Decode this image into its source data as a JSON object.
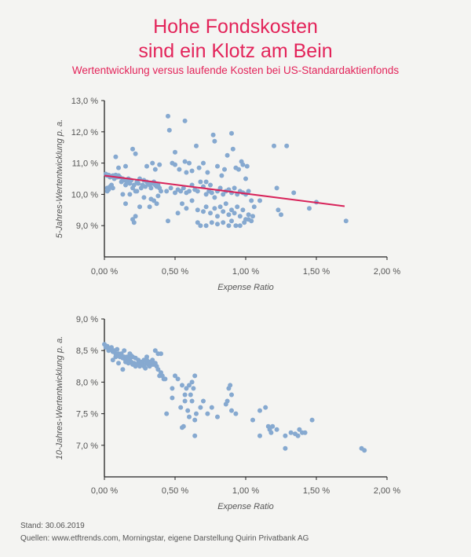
{
  "title_line1": "Hohe Fondskosten",
  "title_line2": "sind ein Klotz am Bein",
  "subtitle": "Wertentwicklung versus laufende Kosten bei US-Standardaktienfonds",
  "footer_stand": "Stand: 30.06.2019",
  "footer_sources": "Quellen: www.etftrends.com, Morningstar, eigene Darstellung Quirin Privatbank AG",
  "colors": {
    "point": "#86a9d0",
    "trend": "#d8235a",
    "title": "#e3245a",
    "axis": "#222222"
  },
  "chart_data": [
    {
      "type": "scatter",
      "xlabel": "Expense Ratio",
      "ylabel": "5-Jahres-Wertentwicklung p. a.",
      "xlim": [
        0,
        2
      ],
      "ylim": [
        8,
        13
      ],
      "xticks": [
        0,
        0.5,
        1,
        1.5,
        2
      ],
      "xtick_labels": [
        "0,00 %",
        "0,50 %",
        "1,00 %",
        "1,50 %",
        "2,00 %"
      ],
      "yticks": [
        9,
        10,
        11,
        12,
        13
      ],
      "ytick_labels": [
        "9,0 %",
        "10,0 %",
        "11,0 %",
        "12,0 %",
        "13,0 %"
      ],
      "trendline": {
        "x": [
          0,
          1.7
        ],
        "y": [
          10.6,
          9.62
        ]
      },
      "points": [
        [
          0.01,
          10.65
        ],
        [
          0.02,
          10.6
        ],
        [
          0.03,
          10.62
        ],
        [
          0.04,
          10.55
        ],
        [
          0.05,
          10.58
        ],
        [
          0.06,
          10.6
        ],
        [
          0.07,
          10.5
        ],
        [
          0.08,
          10.62
        ],
        [
          0.09,
          10.55
        ],
        [
          0.1,
          10.6
        ],
        [
          0.02,
          10.2
        ],
        [
          0.03,
          10.15
        ],
        [
          0.04,
          10.25
        ],
        [
          0.05,
          10.3
        ],
        [
          0.02,
          10.1
        ],
        [
          0.06,
          10.2
        ],
        [
          0.11,
          10.55
        ],
        [
          0.12,
          10.4
        ],
        [
          0.13,
          10.5
        ],
        [
          0.14,
          10.45
        ],
        [
          0.15,
          10.3
        ],
        [
          0.16,
          10.4
        ],
        [
          0.17,
          10.5
        ],
        [
          0.18,
          10.35
        ],
        [
          0.19,
          10.45
        ],
        [
          0.2,
          10.2
        ],
        [
          0.21,
          10.3
        ],
        [
          0.22,
          10.1
        ],
        [
          0.23,
          10.4
        ],
        [
          0.24,
          10.35
        ],
        [
          0.25,
          10.5
        ],
        [
          0.26,
          10.2
        ],
        [
          0.27,
          10.3
        ],
        [
          0.28,
          10.45
        ],
        [
          0.29,
          10.25
        ],
        [
          0.3,
          10.4
        ],
        [
          0.31,
          10.35
        ],
        [
          0.32,
          10.3
        ],
        [
          0.33,
          10.2
        ],
        [
          0.34,
          10.35
        ],
        [
          0.35,
          10.4
        ],
        [
          0.36,
          10.3
        ],
        [
          0.37,
          10.25
        ],
        [
          0.38,
          10.3
        ],
        [
          0.39,
          10.2
        ],
        [
          0.4,
          10.1
        ],
        [
          0.13,
          10.0
        ],
        [
          0.18,
          10.0
        ],
        [
          0.23,
          10.1
        ],
        [
          0.28,
          9.9
        ],
        [
          0.33,
          9.85
        ],
        [
          0.38,
          9.95
        ],
        [
          0.15,
          9.7
        ],
        [
          0.25,
          9.6
        ],
        [
          0.35,
          9.8
        ],
        [
          0.37,
          9.7
        ],
        [
          0.2,
          9.2
        ],
        [
          0.22,
          9.3
        ],
        [
          0.21,
          9.1
        ],
        [
          0.32,
          9.6
        ],
        [
          0.08,
          11.2
        ],
        [
          0.15,
          10.9
        ],
        [
          0.2,
          11.45
        ],
        [
          0.22,
          11.3
        ],
        [
          0.3,
          10.9
        ],
        [
          0.34,
          11.0
        ],
        [
          0.36,
          10.8
        ],
        [
          0.39,
          10.95
        ],
        [
          0.1,
          10.85
        ],
        [
          0.45,
          12.5
        ],
        [
          0.46,
          12.05
        ],
        [
          0.57,
          12.35
        ],
        [
          0.48,
          11.0
        ],
        [
          0.5,
          11.35
        ],
        [
          0.5,
          10.95
        ],
        [
          0.53,
          10.8
        ],
        [
          0.57,
          11.05
        ],
        [
          0.58,
          10.7
        ],
        [
          0.6,
          11.0
        ],
        [
          0.62,
          10.75
        ],
        [
          0.65,
          11.55
        ],
        [
          0.67,
          10.85
        ],
        [
          0.7,
          11.0
        ],
        [
          0.72,
          10.4
        ],
        [
          0.73,
          10.7
        ],
        [
          0.75,
          10.3
        ],
        [
          0.77,
          11.9
        ],
        [
          0.78,
          11.7
        ],
        [
          0.8,
          10.9
        ],
        [
          0.83,
          10.6
        ],
        [
          0.85,
          10.8
        ],
        [
          0.87,
          11.25
        ],
        [
          0.9,
          11.95
        ],
        [
          0.91,
          11.45
        ],
        [
          0.93,
          10.85
        ],
        [
          0.95,
          10.8
        ],
        [
          0.97,
          11.05
        ],
        [
          0.98,
          10.95
        ],
        [
          1.0,
          10.5
        ],
        [
          1.01,
          10.9
        ],
        [
          0.44,
          10.1
        ],
        [
          0.47,
          10.2
        ],
        [
          0.5,
          10.05
        ],
        [
          0.52,
          10.15
        ],
        [
          0.54,
          10.1
        ],
        [
          0.56,
          10.2
        ],
        [
          0.58,
          10.05
        ],
        [
          0.6,
          10.1
        ],
        [
          0.62,
          10.3
        ],
        [
          0.64,
          10.15
        ],
        [
          0.66,
          10.1
        ],
        [
          0.68,
          10.4
        ],
        [
          0.7,
          10.25
        ],
        [
          0.72,
          10.0
        ],
        [
          0.74,
          10.1
        ],
        [
          0.76,
          10.05
        ],
        [
          0.78,
          9.9
        ],
        [
          0.8,
          10.1
        ],
        [
          0.82,
          10.2
        ],
        [
          0.84,
          10.0
        ],
        [
          0.86,
          10.1
        ],
        [
          0.88,
          10.15
        ],
        [
          0.9,
          10.05
        ],
        [
          0.92,
          10.2
        ],
        [
          0.94,
          10.0
        ],
        [
          0.96,
          10.1
        ],
        [
          0.98,
          10.05
        ],
        [
          1.0,
          10.0
        ],
        [
          1.02,
          10.1
        ],
        [
          1.04,
          9.8
        ],
        [
          0.55,
          9.7
        ],
        [
          0.58,
          9.55
        ],
        [
          0.62,
          9.8
        ],
        [
          0.66,
          9.5
        ],
        [
          0.7,
          9.45
        ],
        [
          0.72,
          9.6
        ],
        [
          0.75,
          9.4
        ],
        [
          0.78,
          9.55
        ],
        [
          0.8,
          9.3
        ],
        [
          0.82,
          9.6
        ],
        [
          0.84,
          9.45
        ],
        [
          0.86,
          9.7
        ],
        [
          0.88,
          9.35
        ],
        [
          0.9,
          9.5
        ],
        [
          0.92,
          9.4
        ],
        [
          0.94,
          9.6
        ],
        [
          0.96,
          9.3
        ],
        [
          0.98,
          9.5
        ],
        [
          1.0,
          9.2
        ],
        [
          1.02,
          9.35
        ],
        [
          0.45,
          9.15
        ],
        [
          0.52,
          9.4
        ],
        [
          0.66,
          9.1
        ],
        [
          0.68,
          9.0
        ],
        [
          0.72,
          9.0
        ],
        [
          0.76,
          9.1
        ],
        [
          0.8,
          9.05
        ],
        [
          0.84,
          9.1
        ],
        [
          0.88,
          9.0
        ],
        [
          0.9,
          9.15
        ],
        [
          0.93,
          9.0
        ],
        [
          0.96,
          9.0
        ],
        [
          0.99,
          9.1
        ],
        [
          1.02,
          9.2
        ],
        [
          1.04,
          9.15
        ],
        [
          1.06,
          9.6
        ],
        [
          1.05,
          9.3
        ],
        [
          1.1,
          9.8
        ],
        [
          1.2,
          11.55
        ],
        [
          1.29,
          11.55
        ],
        [
          1.22,
          10.2
        ],
        [
          1.25,
          9.35
        ],
        [
          1.23,
          9.5
        ],
        [
          1.34,
          10.05
        ],
        [
          1.45,
          9.55
        ],
        [
          1.5,
          9.75
        ],
        [
          1.71,
          9.15
        ]
      ]
    },
    {
      "type": "scatter",
      "xlabel": "Expense Ratio",
      "ylabel": "10-Jahres-Wertentwicklung p. a.",
      "xlim": [
        0,
        2
      ],
      "ylim": [
        6.5,
        9
      ],
      "xticks": [
        0,
        0.5,
        1,
        1.5,
        2
      ],
      "xtick_labels": [
        "0,00 %",
        "0,50 %",
        "1,00 %",
        "1,50 %",
        "2,00 %"
      ],
      "yticks": [
        7,
        7.5,
        8,
        8.5,
        9
      ],
      "ytick_labels": [
        "7,0 %",
        "7,5 %",
        "8,0 %",
        "8,5 %",
        "9,0 %"
      ],
      "points": [
        [
          0.0,
          8.6
        ],
        [
          0.01,
          8.55
        ],
        [
          0.02,
          8.57
        ],
        [
          0.03,
          8.5
        ],
        [
          0.04,
          8.52
        ],
        [
          0.05,
          8.55
        ],
        [
          0.06,
          8.48
        ],
        [
          0.07,
          8.5
        ],
        [
          0.08,
          8.45
        ],
        [
          0.09,
          8.52
        ],
        [
          0.1,
          8.45
        ],
        [
          0.11,
          8.4
        ],
        [
          0.12,
          8.42
        ],
        [
          0.13,
          8.38
        ],
        [
          0.14,
          8.4
        ],
        [
          0.15,
          8.35
        ],
        [
          0.16,
          8.37
        ],
        [
          0.17,
          8.3
        ],
        [
          0.18,
          8.35
        ],
        [
          0.19,
          8.32
        ],
        [
          0.2,
          8.28
        ],
        [
          0.21,
          8.3
        ],
        [
          0.22,
          8.25
        ],
        [
          0.23,
          8.28
        ],
        [
          0.24,
          8.3
        ],
        [
          0.25,
          8.25
        ],
        [
          0.26,
          8.27
        ],
        [
          0.27,
          8.3
        ],
        [
          0.28,
          8.25
        ],
        [
          0.29,
          8.22
        ],
        [
          0.3,
          8.3
        ],
        [
          0.31,
          8.28
        ],
        [
          0.32,
          8.25
        ],
        [
          0.33,
          8.3
        ],
        [
          0.34,
          8.35
        ],
        [
          0.35,
          8.28
        ],
        [
          0.36,
          8.3
        ],
        [
          0.37,
          8.25
        ],
        [
          0.38,
          8.2
        ],
        [
          0.39,
          8.1
        ],
        [
          0.4,
          8.15
        ],
        [
          0.41,
          8.1
        ],
        [
          0.42,
          8.05
        ],
        [
          0.43,
          8.05
        ],
        [
          0.12,
          8.45
        ],
        [
          0.14,
          8.5
        ],
        [
          0.16,
          8.4
        ],
        [
          0.18,
          8.45
        ],
        [
          0.2,
          8.4
        ],
        [
          0.22,
          8.38
        ],
        [
          0.24,
          8.35
        ],
        [
          0.26,
          8.32
        ],
        [
          0.28,
          8.35
        ],
        [
          0.3,
          8.4
        ],
        [
          0.32,
          8.32
        ],
        [
          0.34,
          8.28
        ],
        [
          0.36,
          8.5
        ],
        [
          0.38,
          8.45
        ],
        [
          0.4,
          8.45
        ],
        [
          0.06,
          8.35
        ],
        [
          0.1,
          8.3
        ],
        [
          0.08,
          8.4
        ],
        [
          0.13,
          8.2
        ],
        [
          0.2,
          8.3
        ],
        [
          0.15,
          8.32
        ],
        [
          0.17,
          8.38
        ],
        [
          0.19,
          8.42
        ],
        [
          0.3,
          8.35
        ],
        [
          0.48,
          7.75
        ],
        [
          0.52,
          8.05
        ],
        [
          0.55,
          7.95
        ],
        [
          0.57,
          7.8
        ],
        [
          0.58,
          7.9
        ],
        [
          0.6,
          7.95
        ],
        [
          0.61,
          7.8
        ],
        [
          0.62,
          8.0
        ],
        [
          0.63,
          7.9
        ],
        [
          0.64,
          8.1
        ],
        [
          0.54,
          7.6
        ],
        [
          0.57,
          7.7
        ],
        [
          0.59,
          7.55
        ],
        [
          0.6,
          7.45
        ],
        [
          0.62,
          7.7
        ],
        [
          0.64,
          7.4
        ],
        [
          0.65,
          7.5
        ],
        [
          0.56,
          7.3
        ],
        [
          0.55,
          7.28
        ],
        [
          0.64,
          7.15
        ],
        [
          0.68,
          7.6
        ],
        [
          0.7,
          7.7
        ],
        [
          0.73,
          7.5
        ],
        [
          0.76,
          7.6
        ],
        [
          0.8,
          7.45
        ],
        [
          0.86,
          7.65
        ],
        [
          0.87,
          7.7
        ],
        [
          0.88,
          7.9
        ],
        [
          0.89,
          7.95
        ],
        [
          0.9,
          7.8
        ],
        [
          0.9,
          7.55
        ],
        [
          0.93,
          7.5
        ],
        [
          1.05,
          7.4
        ],
        [
          1.1,
          7.55
        ],
        [
          1.1,
          7.15
        ],
        [
          1.14,
          7.6
        ],
        [
          1.16,
          7.3
        ],
        [
          1.17,
          7.25
        ],
        [
          1.18,
          7.2
        ],
        [
          1.19,
          7.3
        ],
        [
          1.22,
          7.25
        ],
        [
          1.28,
          7.15
        ],
        [
          1.28,
          6.95
        ],
        [
          1.32,
          7.2
        ],
        [
          1.35,
          7.18
        ],
        [
          1.37,
          7.15
        ],
        [
          1.38,
          7.25
        ],
        [
          1.4,
          7.2
        ],
        [
          1.42,
          7.2
        ],
        [
          1.47,
          7.4
        ],
        [
          1.82,
          6.95
        ],
        [
          1.84,
          6.92
        ],
        [
          0.44,
          7.5
        ],
        [
          0.48,
          7.9
        ],
        [
          0.5,
          8.1
        ]
      ]
    }
  ]
}
